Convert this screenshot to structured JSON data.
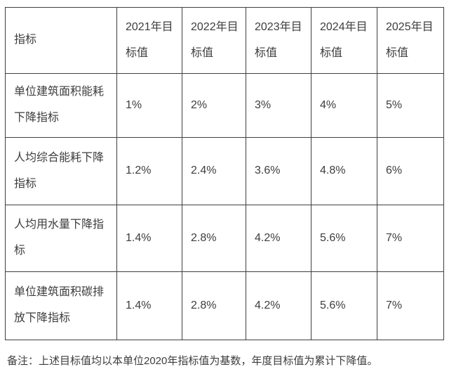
{
  "colors": {
    "page_bg": "#ffffff",
    "border_color": "#3f3f3f",
    "text_color": "#3d3d3d"
  },
  "table": {
    "header": {
      "indicator": "指标",
      "years": [
        "2021年目标值",
        "2022年目标值",
        "2023年目标值",
        "2024年目标值",
        "2025年目标值"
      ]
    },
    "rows": [
      {
        "label": "单位建筑面积能耗下降指标",
        "values": [
          "1%",
          "2%",
          "3%",
          "4%",
          "5%"
        ]
      },
      {
        "label": "人均综合能耗下降指标",
        "values": [
          "1.2%",
          "2.4%",
          "3.6%",
          "4.8%",
          "6%"
        ]
      },
      {
        "label": "人均用水量下降指标",
        "values": [
          "1.4%",
          "2.8%",
          "4.2%",
          "5.6%",
          "7%"
        ]
      },
      {
        "label": "单位建筑面积碳排放下降指标",
        "values": [
          "1.4%",
          "2.8%",
          "4.2%",
          "5.6%",
          "7%"
        ]
      }
    ]
  },
  "note": {
    "text": "备注：上述目标值均以本单位2020年指标值为基数，年度目标值为累计下降值。"
  }
}
